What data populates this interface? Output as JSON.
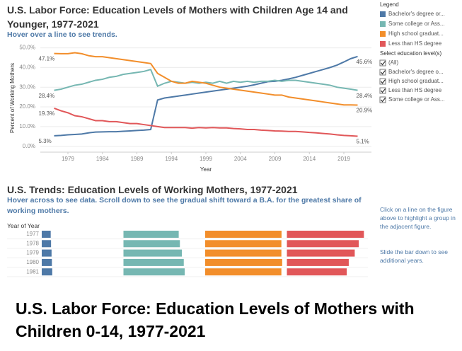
{
  "chart_data": [
    {
      "type": "line",
      "title": "U.S. Labor Force: Education Levels of Mothers with Children Age 14 and Younger, 1977-2021",
      "subtitle": "Hover over a line to see trends.",
      "xlabel": "Year",
      "ylabel": "Percent of Working Mothers",
      "x": [
        1977,
        1978,
        1979,
        1980,
        1981,
        1982,
        1983,
        1984,
        1985,
        1986,
        1987,
        1988,
        1989,
        1990,
        1991,
        1992,
        1993,
        1994,
        1995,
        1996,
        1997,
        1998,
        1999,
        2000,
        2001,
        2002,
        2003,
        2004,
        2005,
        2006,
        2007,
        2008,
        2009,
        2010,
        2011,
        2012,
        2013,
        2014,
        2015,
        2016,
        2017,
        2018,
        2019,
        2020,
        2021
      ],
      "xlim": [
        1975,
        2023
      ],
      "xticks": [
        1979,
        1984,
        1989,
        1994,
        1999,
        2004,
        2009,
        2014,
        2019
      ],
      "ylim": [
        -3,
        52
      ],
      "yticks": [
        {
          "value": 0,
          "label": "0.0%"
        },
        {
          "value": 10,
          "label": "10.0%"
        },
        {
          "value": 20,
          "label": "20.0%"
        },
        {
          "value": 30,
          "label": "30.0%"
        },
        {
          "value": 40,
          "label": "40.0%"
        },
        {
          "value": 50,
          "label": "50.0%"
        }
      ],
      "grid": true,
      "series": [
        {
          "name": "Bachelor's degree or...",
          "color": "#4e79a7",
          "values": [
            5.3,
            5.5,
            5.8,
            6.0,
            6.2,
            6.8,
            7.2,
            7.3,
            7.4,
            7.4,
            7.6,
            7.8,
            8.0,
            8.2,
            8.5,
            23.5,
            24.5,
            25.0,
            25.5,
            26.0,
            26.5,
            27.0,
            27.5,
            28.0,
            28.5,
            29.0,
            29.5,
            30.0,
            30.5,
            31.2,
            32.0,
            32.8,
            33.0,
            33.5,
            34.2,
            35.0,
            36.0,
            37.0,
            38.0,
            39.0,
            40.0,
            41.2,
            42.8,
            44.5,
            45.6
          ],
          "value_labels": [
            "5.3%",
            null,
            null,
            null,
            null,
            null,
            null,
            null,
            null,
            null,
            null,
            null,
            null,
            null,
            null,
            null,
            null,
            null,
            null,
            null,
            null,
            null,
            null,
            null,
            null,
            null,
            null,
            null,
            null,
            null,
            null,
            null,
            null,
            null,
            null,
            null,
            null,
            null,
            null,
            null,
            null,
            null,
            null,
            null,
            "45.6%"
          ]
        },
        {
          "name": "Some college or Ass...",
          "color": "#76b7b2",
          "values": [
            28.4,
            29.0,
            30.0,
            31.0,
            31.5,
            32.5,
            33.5,
            34.0,
            35.0,
            35.5,
            36.5,
            37.0,
            37.5,
            38.0,
            39.0,
            30.5,
            32.0,
            33.0,
            32.5,
            32.0,
            32.5,
            32.0,
            32.5,
            32.0,
            33.0,
            32.0,
            33.0,
            32.5,
            33.0,
            32.5,
            33.0,
            33.0,
            33.5,
            33.0,
            33.5,
            33.5,
            33.0,
            32.5,
            32.0,
            31.5,
            31.0,
            30.0,
            29.5,
            29.0,
            28.4
          ],
          "value_labels": [
            "28.4%",
            null,
            null,
            null,
            null,
            null,
            null,
            null,
            null,
            null,
            null,
            null,
            null,
            null,
            null,
            null,
            null,
            null,
            null,
            null,
            null,
            null,
            null,
            null,
            null,
            null,
            null,
            null,
            null,
            null,
            null,
            null,
            null,
            null,
            null,
            null,
            null,
            null,
            null,
            null,
            null,
            null,
            null,
            null,
            "28.4%"
          ]
        },
        {
          "name": "High school graduat...",
          "color": "#f28e2b",
          "values": [
            47.1,
            47.0,
            47.0,
            47.5,
            47.0,
            46.0,
            45.5,
            45.5,
            45.0,
            44.5,
            44.0,
            43.5,
            43.0,
            42.5,
            42.0,
            37.0,
            35.0,
            33.0,
            32.0,
            32.0,
            33.0,
            32.5,
            32.0,
            31.0,
            30.0,
            29.5,
            29.0,
            28.5,
            28.0,
            27.5,
            27.0,
            26.5,
            26.0,
            26.0,
            25.0,
            24.5,
            24.0,
            23.5,
            23.0,
            22.5,
            22.0,
            21.5,
            21.0,
            21.0,
            20.9
          ],
          "value_labels": [
            "47.1%",
            null,
            null,
            null,
            null,
            null,
            null,
            null,
            null,
            null,
            null,
            null,
            null,
            null,
            null,
            null,
            null,
            null,
            null,
            null,
            null,
            null,
            null,
            null,
            null,
            null,
            null,
            null,
            null,
            null,
            null,
            null,
            null,
            null,
            null,
            null,
            null,
            null,
            null,
            null,
            null,
            null,
            null,
            null,
            "20.9%"
          ]
        },
        {
          "name": "Less than HS degree",
          "color": "#e15759",
          "values": [
            19.3,
            18.0,
            17.0,
            15.5,
            15.0,
            14.0,
            13.0,
            13.0,
            12.5,
            12.5,
            12.0,
            11.5,
            11.5,
            11.0,
            10.5,
            10.0,
            9.5,
            9.5,
            9.5,
            9.5,
            9.2,
            9.5,
            9.3,
            9.5,
            9.3,
            9.3,
            9.0,
            8.8,
            8.5,
            8.5,
            8.2,
            8.0,
            7.8,
            7.7,
            7.5,
            7.5,
            7.3,
            7.0,
            6.8,
            6.5,
            6.2,
            5.8,
            5.5,
            5.3,
            5.1
          ],
          "value_labels": [
            "19.3%",
            null,
            null,
            null,
            null,
            null,
            null,
            null,
            null,
            null,
            null,
            null,
            null,
            null,
            null,
            null,
            null,
            null,
            null,
            null,
            null,
            null,
            null,
            null,
            null,
            null,
            null,
            null,
            null,
            null,
            null,
            null,
            null,
            null,
            null,
            null,
            null,
            null,
            null,
            null,
            null,
            null,
            null,
            null,
            "5.1%"
          ]
        }
      ],
      "legend_title": "Legend"
    },
    {
      "type": "bar",
      "orientation": "horizontal",
      "title": "U.S. Trends: Education Levels of Working Mothers, 1977-2021",
      "subtitle": "Hover across to see data.  Scroll down to see the gradual shift toward a B.A. for the greatest share of working mothers.",
      "ylabel": "Year of Year",
      "categories": [
        "1977",
        "1978",
        "1979",
        "1980",
        "1981"
      ],
      "series": [
        {
          "color": "#4e79a7",
          "xlim": [
            0,
            46
          ],
          "values": [
            5.3,
            5.5,
            5.8,
            6.0,
            6.2
          ]
        },
        {
          "color": "#76b7b2",
          "xlim": [
            0,
            40
          ],
          "values": [
            28.4,
            29.0,
            30.0,
            31.0,
            31.5
          ]
        },
        {
          "color": "#f28e2b",
          "xlim": [
            0,
            48
          ],
          "values": [
            47.1,
            47.0,
            47.0,
            47.5,
            47.0
          ]
        },
        {
          "color": "#e15759",
          "xlim": [
            0,
            19.5
          ],
          "values": [
            19.3,
            18.0,
            17.0,
            15.5,
            15.0
          ]
        }
      ]
    }
  ],
  "filter": {
    "title": "Select education level(s)",
    "options": [
      "(All)",
      "Bachelor's degree o...",
      "High school graduat...",
      "Less than HS degree",
      "Some college or Ass..."
    ]
  },
  "side_notes": [
    "Click on a line on the figure above to highlight a group in the adjacent figure.",
    "Slide the bar down to see additional years."
  ],
  "caption": "U.S. Labor Force: Education Levels of Mothers with Children 0-14, 1977-2021"
}
